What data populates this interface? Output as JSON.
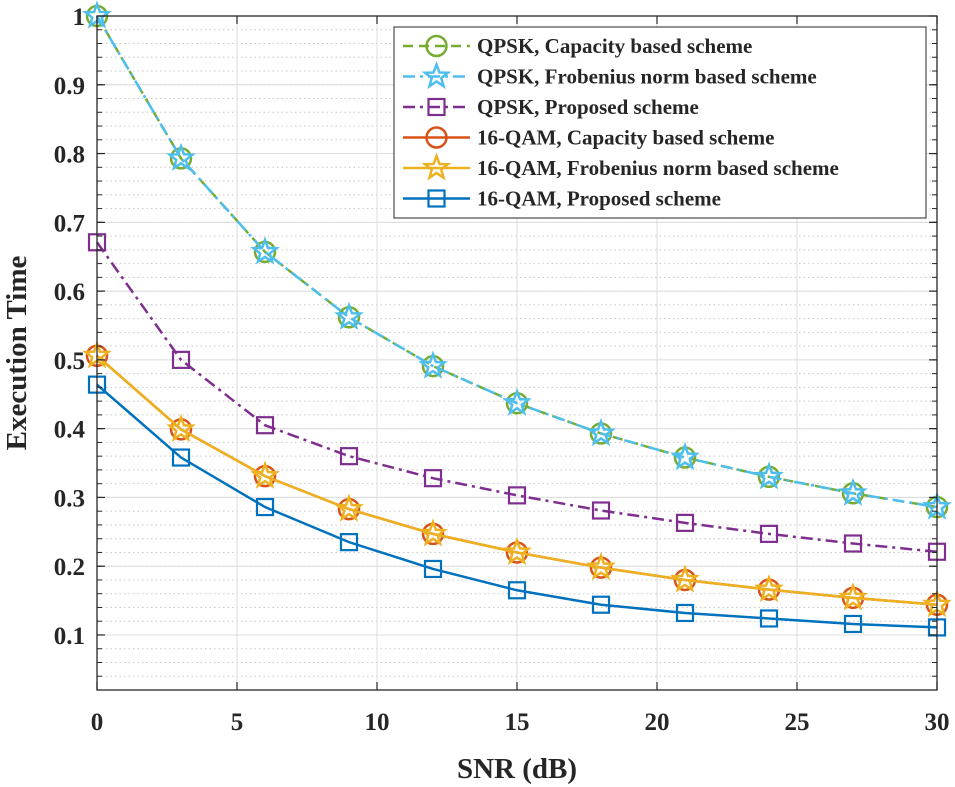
{
  "chart_data": {
    "type": "line",
    "xlabel": "SNR (dB)",
    "ylabel": "Execution Time",
    "xlim": [
      0,
      30
    ],
    "ylim": [
      0.02,
      1.0
    ],
    "xticks": [
      0,
      5,
      10,
      15,
      20,
      25,
      30
    ],
    "xtick_labels": [
      "0",
      "5",
      "10",
      "15",
      "20",
      "25",
      "30"
    ],
    "yticks": [
      0.1,
      0.2,
      0.3,
      0.4,
      0.5,
      0.6,
      0.7,
      0.8,
      0.9,
      1.0
    ],
    "ytick_labels": [
      "0.1",
      "0.2",
      "0.3",
      "0.4",
      "0.5",
      "0.6",
      "0.7",
      "0.8",
      "0.9",
      "1"
    ],
    "grid": true,
    "minor_grid": true,
    "legend_position": "top-right",
    "x": [
      0,
      3,
      6,
      9,
      12,
      15,
      18,
      21,
      24,
      27,
      30
    ],
    "series": [
      {
        "name": "QPSK, Capacity based scheme",
        "color": "#77ac30",
        "line": "dashed",
        "marker": "circle",
        "values": [
          1.0,
          0.793,
          0.657,
          0.562,
          0.491,
          0.437,
          0.393,
          0.358,
          0.33,
          0.306,
          0.286
        ]
      },
      {
        "name": "QPSK, Frobenius norm based scheme",
        "color": "#4dbeee",
        "line": "dashdot",
        "marker": "star",
        "values": [
          1.0,
          0.793,
          0.657,
          0.562,
          0.491,
          0.437,
          0.393,
          0.358,
          0.33,
          0.306,
          0.286
        ]
      },
      {
        "name": "QPSK, Proposed scheme",
        "color": "#7e2f8e",
        "line": "dashdot",
        "marker": "square",
        "values": [
          0.671,
          0.5,
          0.405,
          0.36,
          0.328,
          0.303,
          0.281,
          0.263,
          0.247,
          0.233,
          0.221
        ]
      },
      {
        "name": "16-QAM, Capacity based scheme",
        "color": "#d95319",
        "line": "solid",
        "marker": "circle",
        "values": [
          0.506,
          0.399,
          0.331,
          0.283,
          0.247,
          0.22,
          0.198,
          0.18,
          0.166,
          0.154,
          0.144
        ]
      },
      {
        "name": "16-QAM, Frobenius norm based scheme",
        "color": "#edb120",
        "line": "solid",
        "marker": "star",
        "values": [
          0.506,
          0.399,
          0.331,
          0.283,
          0.247,
          0.22,
          0.198,
          0.18,
          0.166,
          0.154,
          0.144
        ]
      },
      {
        "name": "16-QAM, Proposed scheme",
        "color": "#0072bd",
        "line": "solid",
        "marker": "square",
        "values": [
          0.464,
          0.358,
          0.286,
          0.235,
          0.196,
          0.165,
          0.144,
          0.132,
          0.124,
          0.116,
          0.111
        ]
      }
    ]
  }
}
